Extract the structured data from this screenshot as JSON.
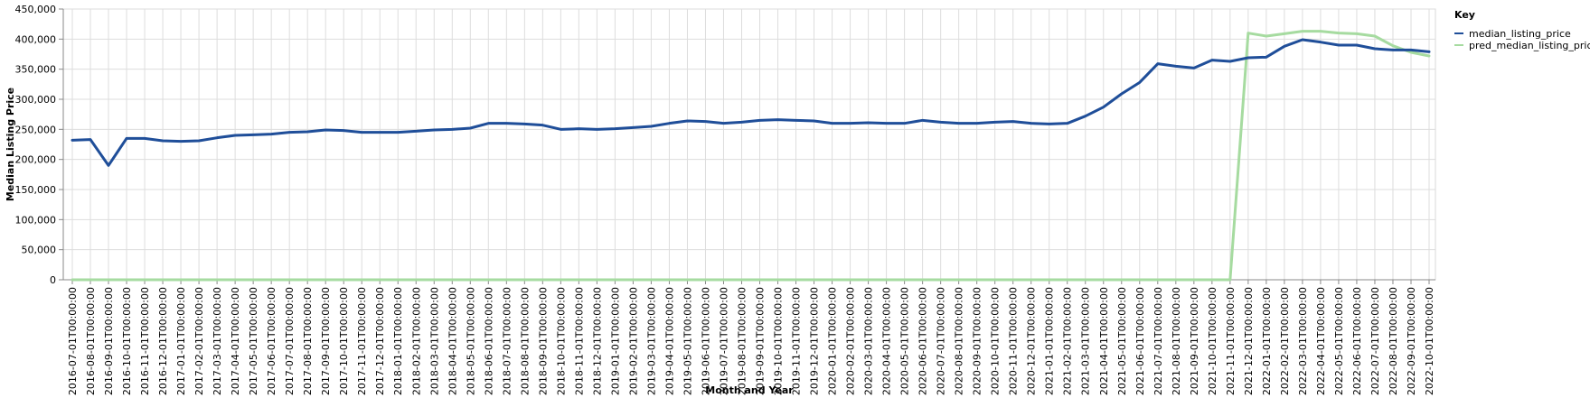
{
  "chart_data": {
    "type": "line",
    "xlabel": "Month and Year",
    "ylabel": "Median Listing Price",
    "ylim": [
      0,
      450000
    ],
    "yticks": [
      0,
      50000,
      100000,
      150000,
      200000,
      250000,
      300000,
      350000,
      400000,
      450000
    ],
    "ytick_labels": [
      "0",
      "50,000",
      "100,000",
      "150,000",
      "200,000",
      "250,000",
      "300,000",
      "350,000",
      "400,000",
      "450,000"
    ],
    "grid": true,
    "legend": {
      "title": "Key",
      "placement": "top-right"
    },
    "x": [
      "2016-07-01T00:00:00",
      "2016-08-01T00:00:00",
      "2016-09-01T00:00:00",
      "2016-10-01T00:00:00",
      "2016-11-01T00:00:00",
      "2016-12-01T00:00:00",
      "2017-01-01T00:00:00",
      "2017-02-01T00:00:00",
      "2017-03-01T00:00:00",
      "2017-04-01T00:00:00",
      "2017-05-01T00:00:00",
      "2017-06-01T00:00:00",
      "2017-07-01T00:00:00",
      "2017-08-01T00:00:00",
      "2017-09-01T00:00:00",
      "2017-10-01T00:00:00",
      "2017-11-01T00:00:00",
      "2017-12-01T00:00:00",
      "2018-01-01T00:00:00",
      "2018-02-01T00:00:00",
      "2018-03-01T00:00:00",
      "2018-04-01T00:00:00",
      "2018-05-01T00:00:00",
      "2018-06-01T00:00:00",
      "2018-07-01T00:00:00",
      "2018-08-01T00:00:00",
      "2018-09-01T00:00:00",
      "2018-10-01T00:00:00",
      "2018-11-01T00:00:00",
      "2018-12-01T00:00:00",
      "2019-01-01T00:00:00",
      "2019-02-01T00:00:00",
      "2019-03-01T00:00:00",
      "2019-04-01T00:00:00",
      "2019-05-01T00:00:00",
      "2019-06-01T00:00:00",
      "2019-07-01T00:00:00",
      "2019-08-01T00:00:00",
      "2019-09-01T00:00:00",
      "2019-10-01T00:00:00",
      "2019-11-01T00:00:00",
      "2019-12-01T00:00:00",
      "2020-01-01T00:00:00",
      "2020-02-01T00:00:00",
      "2020-03-01T00:00:00",
      "2020-04-01T00:00:00",
      "2020-05-01T00:00:00",
      "2020-06-01T00:00:00",
      "2020-07-01T00:00:00",
      "2020-08-01T00:00:00",
      "2020-09-01T00:00:00",
      "2020-10-01T00:00:00",
      "2020-11-01T00:00:00",
      "2020-12-01T00:00:00",
      "2021-01-01T00:00:00",
      "2021-02-01T00:00:00",
      "2021-03-01T00:00:00",
      "2021-04-01T00:00:00",
      "2021-05-01T00:00:00",
      "2021-06-01T00:00:00",
      "2021-07-01T00:00:00",
      "2021-08-01T00:00:00",
      "2021-09-01T00:00:00",
      "2021-10-01T00:00:00",
      "2021-11-01T00:00:00",
      "2021-12-01T00:00:00",
      "2022-01-01T00:00:00",
      "2022-02-01T00:00:00",
      "2022-03-01T00:00:00",
      "2022-04-01T00:00:00",
      "2022-05-01T00:00:00",
      "2022-06-01T00:00:00",
      "2022-07-01T00:00:00",
      "2022-08-01T00:00:00",
      "2022-09-01T00:00:00",
      "2022-10-01T00:00:00"
    ],
    "series": [
      {
        "name": "median_listing_price",
        "color": "#1f4e99",
        "values": [
          232000,
          233000,
          190000,
          235000,
          235000,
          231000,
          230000,
          231000,
          236000,
          240000,
          241000,
          242000,
          245000,
          246000,
          249000,
          248000,
          245000,
          245000,
          245000,
          247000,
          249000,
          250000,
          252000,
          260000,
          260000,
          259000,
          257000,
          250000,
          251000,
          250000,
          251000,
          253000,
          255000,
          260000,
          264000,
          263000,
          260000,
          262000,
          265000,
          266000,
          265000,
          264000,
          260000,
          260000,
          261000,
          260000,
          260000,
          265000,
          262000,
          260000,
          260000,
          262000,
          263000,
          260000,
          259000,
          260000,
          272000,
          287000,
          309000,
          328000,
          359000,
          355000,
          352000,
          365000,
          363000,
          369000,
          370000,
          388000,
          399000,
          395000,
          390000,
          390000,
          384000,
          382000,
          382000,
          379000
        ]
      },
      {
        "name": "pred_median_listing_price",
        "color": "#a6dba0",
        "values": [
          0,
          0,
          0,
          0,
          0,
          0,
          0,
          0,
          0,
          0,
          0,
          0,
          0,
          0,
          0,
          0,
          0,
          0,
          0,
          0,
          0,
          0,
          0,
          0,
          0,
          0,
          0,
          0,
          0,
          0,
          0,
          0,
          0,
          0,
          0,
          0,
          0,
          0,
          0,
          0,
          0,
          0,
          0,
          0,
          0,
          0,
          0,
          0,
          0,
          0,
          0,
          0,
          0,
          0,
          0,
          0,
          0,
          0,
          0,
          0,
          0,
          0,
          0,
          0,
          0,
          410000,
          405000,
          409000,
          413000,
          413000,
          410000,
          409000,
          405000,
          389000,
          378000,
          372000
        ]
      }
    ]
  }
}
